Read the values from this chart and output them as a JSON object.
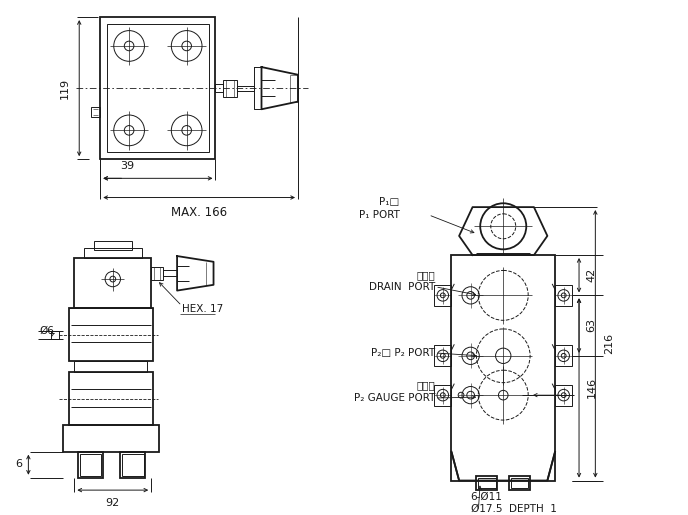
{
  "bg_color": "#ffffff",
  "line_color": "#1a1a1a",
  "fig_width": 6.88,
  "fig_height": 5.15,
  "dpi": 100,
  "annotations": {
    "P1_box": "P₁□",
    "P1_PORT": "P₁ PORT",
    "drain_jp": "漏流口",
    "drain_en": "DRAIN  PORT",
    "P2_box": "P₂□",
    "P2_PORT": "P₂ PORT",
    "gauge_jp": "測圧口",
    "gauge_en": "P₂ GAUGE PORT",
    "bolt": "6-Ø11",
    "counterbore": "Ø17.5  DEPTH  1",
    "hex": "HEX. 17",
    "dim_119": "119",
    "dim_39": "39",
    "dim_166": "MAX. 166",
    "dim_42": "42",
    "dim_63": "63",
    "dim_146": "146",
    "dim_216": "216",
    "dim_6": "6",
    "dim_92": "92",
    "dim_phi6": "Ø6"
  }
}
